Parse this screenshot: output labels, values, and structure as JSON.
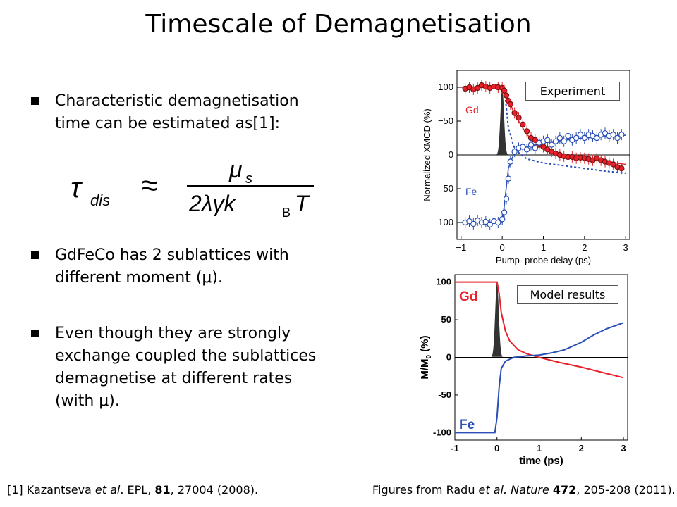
{
  "title": "Timescale of Demagnetisation",
  "bullets": [
    {
      "lines": [
        "Characteristic demagnetisation",
        "time can be estimated as[1]:"
      ]
    },
    {
      "lines": [
        "GdFeCo has 2 sublattices with",
        "different moment (μ)."
      ]
    },
    {
      "lines": [
        "Even though they are strongly",
        "exchange coupled the sublattices",
        "demagnetise at different rates",
        "(with μ)."
      ]
    }
  ],
  "formula": {
    "lhs": "τ",
    "lhs_sub": "dis",
    "approx": "≈",
    "numerator": "μ",
    "numerator_sub": "s",
    "denominator": "2λγk",
    "denominator_sub": "B",
    "denominator_tail": "T"
  },
  "footer": {
    "ref_prefix": "[1] Kazantseva ",
    "ref_italic": "et al",
    "ref_mid": ". EPL, ",
    "ref_bold": "81",
    "ref_suffix": ", 27004 (2008).",
    "fig_prefix": "Figures from Radu ",
    "fig_italic": "et al. Nature",
    "fig_mid": " ",
    "fig_bold": "472",
    "fig_suffix": ", 205-208 (2011)."
  },
  "colors": {
    "gd": "#e8212a",
    "fe": "#2a4fb5",
    "pulse": "#333333"
  },
  "chart_data": [
    {
      "type": "scatter",
      "label_box": "Experiment",
      "xlabel": "Pump–probe delay (ps)",
      "ylabel": "Normalized XMCD (%)",
      "xlim": [
        -1.1,
        3.1
      ],
      "ylim": [
        -125,
        125
      ],
      "xticks": [
        "−1",
        "0",
        "1",
        "2",
        "3"
      ],
      "yticks": [
        "−100",
        "−50",
        "0",
        "50",
        "100"
      ],
      "series": [
        {
          "name": "Gd",
          "x": [
            -0.9,
            -0.8,
            -0.7,
            -0.6,
            -0.5,
            -0.4,
            -0.3,
            -0.2,
            -0.1,
            0.0,
            0.05,
            0.1,
            0.15,
            0.2,
            0.3,
            0.4,
            0.5,
            0.6,
            0.7,
            0.8,
            0.9,
            1.0,
            1.1,
            1.2,
            1.3,
            1.4,
            1.5,
            1.6,
            1.7,
            1.8,
            1.9,
            2.0,
            2.1,
            2.2,
            2.3,
            2.4,
            2.5,
            2.6,
            2.7,
            2.8,
            2.9
          ],
          "y": [
            98,
            100,
            97,
            99,
            103,
            101,
            99,
            101,
            100,
            99,
            95,
            88,
            80,
            75,
            62,
            55,
            45,
            35,
            25,
            22,
            15,
            12,
            8,
            5,
            2,
            0,
            -2,
            -3,
            -3,
            -5,
            -4,
            -5,
            -6,
            -8,
            -5,
            -8,
            -10,
            -12,
            -14,
            -18,
            -20
          ]
        },
        {
          "name": "Fe",
          "x": [
            -0.9,
            -0.8,
            -0.7,
            -0.6,
            -0.5,
            -0.4,
            -0.3,
            -0.2,
            -0.1,
            0.0,
            0.05,
            0.1,
            0.15,
            0.2,
            0.3,
            0.4,
            0.5,
            0.6,
            0.7,
            0.8,
            0.9,
            1.0,
            1.1,
            1.2,
            1.3,
            1.4,
            1.5,
            1.6,
            1.7,
            1.8,
            1.9,
            2.0,
            2.1,
            2.2,
            2.3,
            2.4,
            2.5,
            2.6,
            2.7,
            2.8,
            2.9
          ],
          "y": [
            -100,
            -98,
            -102,
            -97,
            -100,
            -99,
            -103,
            -98,
            -100,
            -95,
            -85,
            -65,
            -35,
            -10,
            5,
            10,
            12,
            8,
            15,
            10,
            18,
            20,
            22,
            15,
            20,
            25,
            20,
            28,
            22,
            25,
            30,
            25,
            30,
            28,
            25,
            30,
            32,
            28,
            30,
            25,
            30
          ]
        }
      ],
      "fits": [
        {
          "name": "Gd",
          "x": [
            -1,
            0,
            0.1,
            0.3,
            0.6,
            1.0,
            1.5,
            2.0,
            2.5,
            3.0
          ],
          "y": [
            100,
            100,
            90,
            60,
            30,
            10,
            0,
            -6,
            -10,
            -14
          ]
        },
        {
          "name": "Fe",
          "x": [
            -1,
            0,
            0.05,
            0.15,
            0.3,
            0.6,
            1.0,
            2.0,
            3.0
          ],
          "y": [
            -100,
            -100,
            -75,
            -20,
            5,
            12,
            18,
            25,
            29
          ]
        },
        {
          "name": "model",
          "x": [
            0.05,
            0.15,
            0.3,
            0.6,
            1.0,
            1.5,
            2.0,
            2.5,
            3.0
          ],
          "y": [
            100,
            40,
            8,
            -6,
            -12,
            -16,
            -20,
            -24,
            -27
          ]
        }
      ],
      "pulse_center": 0.0
    },
    {
      "type": "line",
      "label_box": "Model results",
      "xlabel": "time (ps)",
      "ylabel": "M/M",
      "ylabel_sub": "0",
      "ylabel_tail": " (%)",
      "xlim": [
        -1,
        3.1
      ],
      "ylim": [
        -110,
        110
      ],
      "xticks": [
        "-1",
        "0",
        "1",
        "2",
        "3"
      ],
      "yticks": [
        "100",
        "50",
        "0",
        "-50",
        "-100"
      ],
      "series": [
        {
          "name": "Gd",
          "x": [
            -1,
            0.0,
            0.05,
            0.1,
            0.2,
            0.3,
            0.5,
            0.7,
            1.0,
            1.5,
            2.0,
            2.5,
            3.0
          ],
          "y": [
            100,
            100,
            85,
            60,
            35,
            22,
            10,
            5,
            0,
            -7,
            -13,
            -20,
            -27
          ]
        },
        {
          "name": "Fe",
          "x": [
            -1,
            -0.05,
            0.0,
            0.05,
            0.1,
            0.2,
            0.4,
            0.7,
            1.0,
            1.3,
            1.6,
            2.0,
            2.3,
            2.6,
            3.0
          ],
          "y": [
            -100,
            -100,
            -80,
            -40,
            -15,
            -5,
            0,
            2,
            3,
            6,
            10,
            20,
            30,
            38,
            46
          ]
        }
      ],
      "pulse_center": 0.0
    }
  ]
}
